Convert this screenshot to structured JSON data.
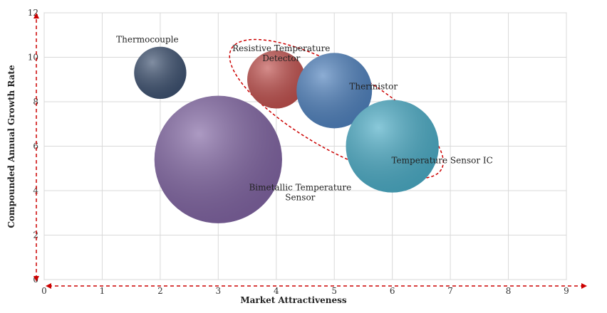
{
  "chart_data": {
    "type": "bubble",
    "xlabel": "Market Attractiveness",
    "ylabel": "Compounded  Annual  Growth Rate",
    "xlim": [
      0,
      9
    ],
    "ylim": [
      0,
      12
    ],
    "xticks": [
      "0",
      "1",
      "2",
      "3",
      "4",
      "5",
      "6",
      "7",
      "8",
      "9"
    ],
    "yticks": [
      "0",
      "2",
      "4",
      "6",
      "8",
      "10",
      "12"
    ],
    "grid": true,
    "series": [
      {
        "name": "Thermocouple",
        "label_lines": [
          "Thermocouple"
        ],
        "x": 2.0,
        "y": 9.3,
        "size": 0.9,
        "color": "#3d5170"
      },
      {
        "name": "Resistive Temperature Detector",
        "label_lines": [
          "Resistive Temperature",
          "Detector"
        ],
        "x": 4.0,
        "y": 9.0,
        "size": 1.0,
        "color": "#c0504d"
      },
      {
        "name": "Thermistor",
        "label_lines": [
          "Thermistor"
        ],
        "x": 5.0,
        "y": 8.5,
        "size": 1.3,
        "color": "#4f81bd"
      },
      {
        "name": "Temperature Sensor IC",
        "label_lines": [
          "Temperature Sensor IC"
        ],
        "x": 6.0,
        "y": 6.0,
        "size": 1.6,
        "color": "#4bacc6"
      },
      {
        "name": "Bimetallic Temperature Sensor",
        "label_lines": [
          "Bimetallic Temperature",
          "Sensor"
        ],
        "x": 3.0,
        "y": 5.4,
        "size": 2.2,
        "color": "#8064a2"
      }
    ],
    "highlight": {
      "style": "dashed-ellipse",
      "color": "#cc0000",
      "members": [
        "Resistive Temperature Detector",
        "Thermistor",
        "Temperature Sensor IC"
      ]
    }
  }
}
